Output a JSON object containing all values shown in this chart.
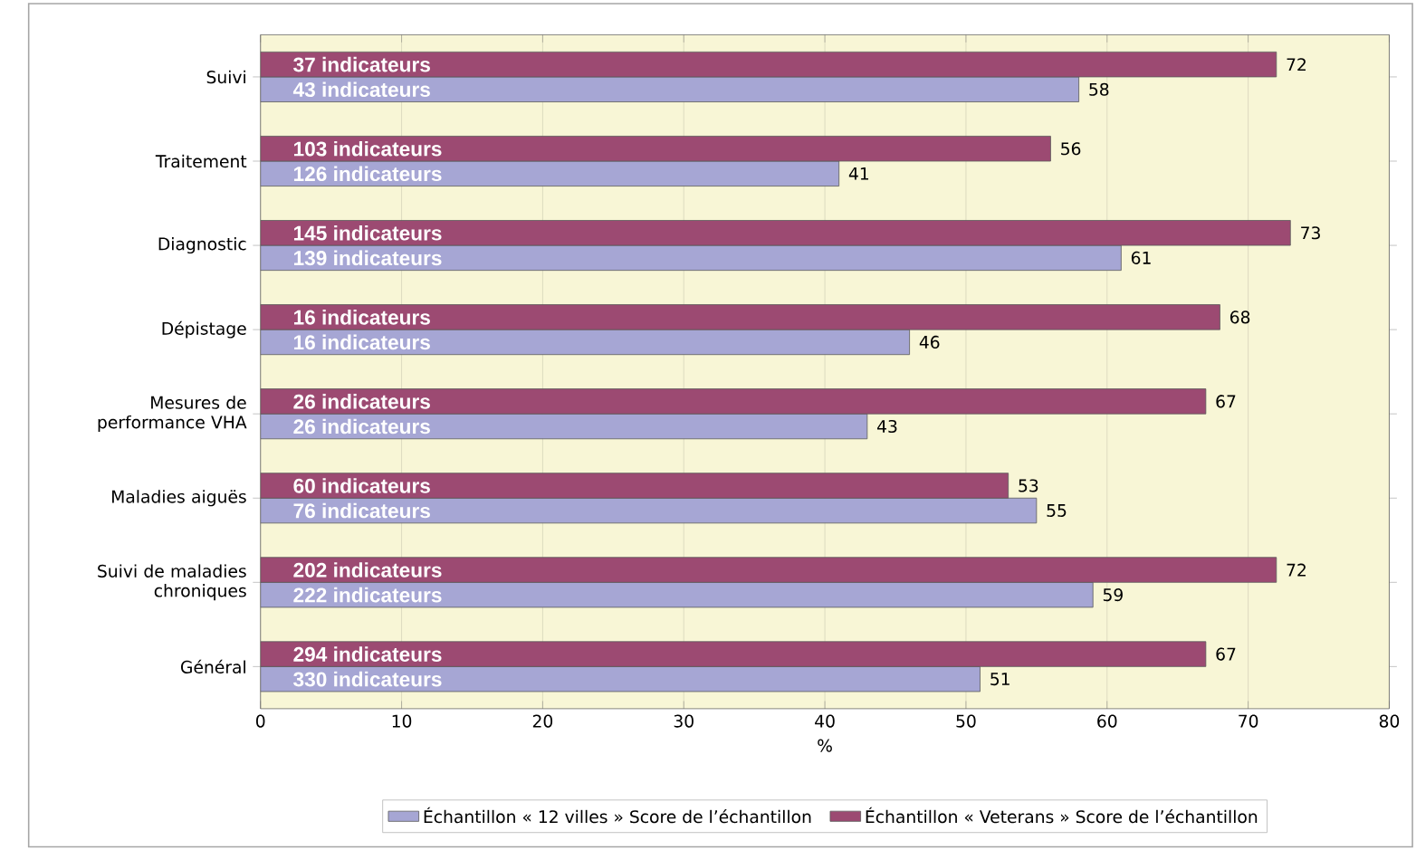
{
  "chart_data": {
    "type": "bar",
    "orientation": "horizontal",
    "xlabel": "%",
    "categories": [
      "Suivi",
      "Traitement",
      "Diagnostic",
      "Dépistage",
      "Mesures de performance VHA",
      "Maladies aiguës",
      "Suivi de maladies chroniques",
      "Général"
    ],
    "series": [
      {
        "name": "Échantillon « 12 villes » Score de l’échantillon",
        "color": "#a6a6d4",
        "values": [
          58,
          41,
          61,
          46,
          43,
          55,
          59,
          51
        ]
      },
      {
        "name": "Échantillon « Veterans » Score de l’échantillon",
        "color": "#9c4a72",
        "values": [
          72,
          56,
          73,
          68,
          67,
          53,
          72,
          67
        ]
      }
    ],
    "xlim": [
      0,
      80
    ],
    "xticks": [
      0,
      10,
      20,
      30,
      40,
      50,
      60,
      70,
      80
    ],
    "grid": "x",
    "legend": "bottom",
    "data_labels": true,
    "annotations": [
      "37 indicateurs",
      "43 indicateurs",
      "103 indicateurs",
      "126 indicateurs",
      "145 indicateurs",
      "139 indicateurs",
      "16 indicateurs",
      "16 indicateurs",
      "26 indicateurs",
      "26 indicateurs",
      "60 indicateurs",
      "76 indicateurs",
      "202 indicateurs",
      "222 indicateurs",
      "294 indicateurs",
      "330 indicateurs"
    ]
  }
}
